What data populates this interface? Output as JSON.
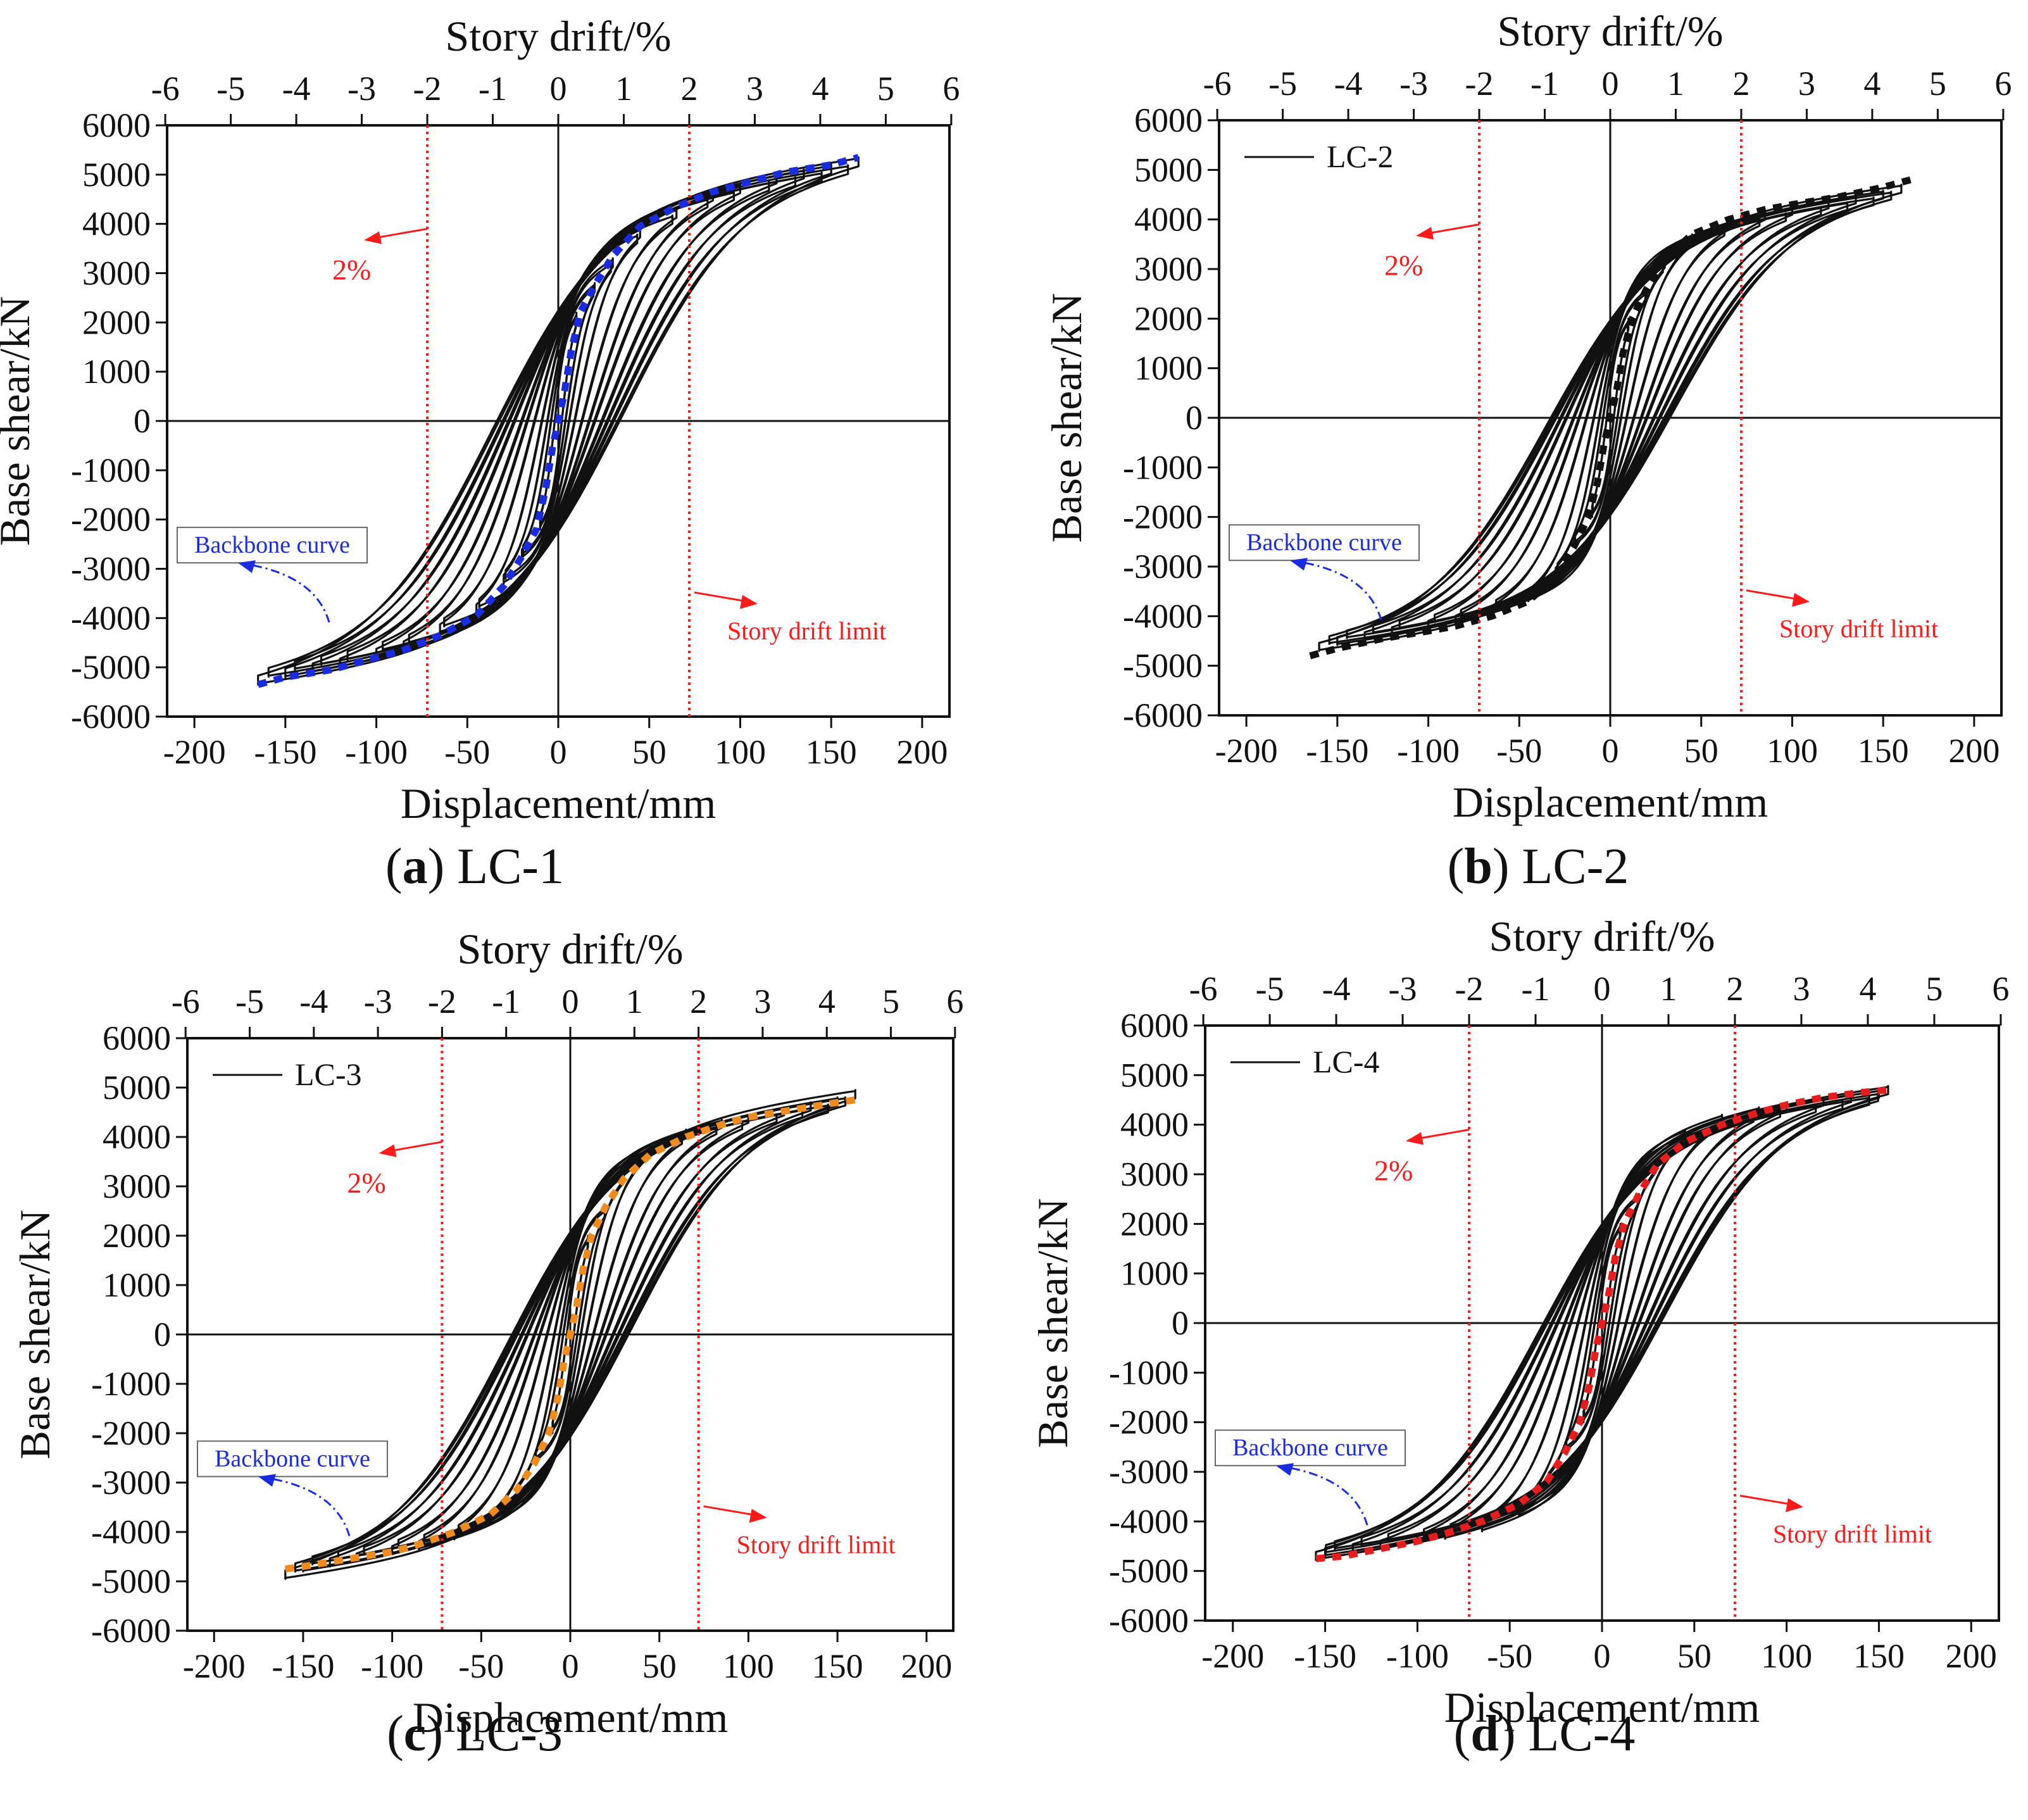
{
  "figure": {
    "panels": [
      {
        "id": "a",
        "letter": "a",
        "label": "LC-1",
        "show_legend": false,
        "legend_label": "",
        "backbone_color": "#1a2ce0",
        "backbone_label": "Backbone curve"
      },
      {
        "id": "b",
        "letter": "b",
        "label": "LC-2",
        "show_legend": true,
        "legend_label": "LC-2",
        "backbone_color": "#111111",
        "backbone_label": "Backbone curve"
      },
      {
        "id": "c",
        "letter": "c",
        "label": "LC-3",
        "show_legend": true,
        "legend_label": "LC-3",
        "backbone_color": "#f08c1e",
        "backbone_label": "Backbone curve"
      },
      {
        "id": "d",
        "letter": "d",
        "label": "LC-4",
        "show_legend": true,
        "legend_label": "LC-4",
        "backbone_color": "#e81c1c",
        "backbone_label": "Backbone curve"
      }
    ],
    "colors": {
      "curve": "#111111",
      "limit": "#ff1a1a",
      "annotation": "#ff1a1a",
      "callout": "#1a2ce0"
    }
  },
  "chart_data": [
    {
      "type": "line",
      "title": "(a) LC-1",
      "xlabel": "Displacement/mm",
      "ylabel": "Base shear/kN",
      "x2label": "Story drift/%",
      "xlim": [
        -215,
        215
      ],
      "ylim": [
        -6000,
        6000
      ],
      "xticks": [
        -200,
        -150,
        -100,
        -50,
        0,
        50,
        100,
        150,
        200
      ],
      "yticks": [
        -6000,
        -5000,
        -4000,
        -3000,
        -2000,
        -1000,
        0,
        1000,
        2000,
        3000,
        4000,
        5000,
        6000
      ],
      "x2ticks": [
        -6,
        -5,
        -4,
        -3,
        -2,
        -1,
        0,
        1,
        2,
        3,
        4,
        5,
        6
      ],
      "drift_limit_mm": 72,
      "drift_limit_label": "Story drift limit",
      "drift_pct_label": "2%",
      "backbone_label": "Backbone curve",
      "hysteresis": {
        "max_disp": [
          10,
          20,
          30,
          45,
          65,
          85,
          100,
          120,
          135,
          150,
          165
        ],
        "max_force": [
          2200,
          2800,
          3300,
          3900,
          4300,
          4650,
          4800,
          5000,
          5100,
          5200,
          5350
        ],
        "loops_per_amplitude": 2,
        "closing_x": 0.22,
        "hardening": 0.16,
        "curvature": 0.13
      },
      "backbone": {
        "x": [
          -165,
          -150,
          -125,
          -100,
          -85,
          -65,
          -45,
          -30,
          -20,
          -12,
          -7,
          -3,
          0,
          3,
          7,
          12,
          20,
          30,
          45,
          65,
          85,
          100,
          125,
          150,
          165
        ],
        "y": [
          -5350,
          -5200,
          -5050,
          -4800,
          -4650,
          -4350,
          -3950,
          -3350,
          -2750,
          -2200,
          -1400,
          -500,
          0,
          500,
          1400,
          2200,
          2750,
          3350,
          3950,
          4350,
          4650,
          4800,
          5050,
          5200,
          5350
        ]
      }
    },
    {
      "type": "line",
      "title": "(b) LC-2",
      "xlabel": "Displacement/mm",
      "ylabel": "Base shear/kN",
      "x2label": "Story drift/%",
      "xlim": [
        -215,
        215
      ],
      "ylim": [
        -6000,
        6000
      ],
      "xticks": [
        -200,
        -150,
        -100,
        -50,
        0,
        50,
        100,
        150,
        200
      ],
      "yticks": [
        -6000,
        -5000,
        -4000,
        -3000,
        -2000,
        -1000,
        0,
        1000,
        2000,
        3000,
        4000,
        5000,
        6000
      ],
      "x2ticks": [
        -6,
        -5,
        -4,
        -3,
        -2,
        -1,
        0,
        1,
        2,
        3,
        4,
        5,
        6
      ],
      "legend": [
        "LC-2"
      ],
      "drift_limit_mm": 72,
      "drift_limit_label": "Story drift limit",
      "drift_pct_label": "2%",
      "backbone_label": "Backbone curve",
      "hysteresis": {
        "max_disp": [
          10,
          20,
          30,
          45,
          65,
          85,
          100,
          120,
          135,
          150,
          160
        ],
        "max_force": [
          2000,
          2600,
          3200,
          3700,
          3950,
          4150,
          4250,
          4380,
          4480,
          4580,
          4700
        ],
        "loops_per_amplitude": 2,
        "closing_x": 0.22,
        "hardening": 0.16,
        "curvature": 0.13
      },
      "backbone": {
        "x": [
          -165,
          -150,
          -125,
          -100,
          -85,
          -65,
          -45,
          -30,
          -20,
          -12,
          -7,
          -3,
          0,
          3,
          7,
          12,
          20,
          30,
          45,
          65,
          85,
          100,
          125,
          150,
          165
        ],
        "y": [
          -4800,
          -4650,
          -4450,
          -4300,
          -4200,
          -4000,
          -3700,
          -3200,
          -2600,
          -2000,
          -1300,
          -450,
          0,
          450,
          1300,
          2000,
          2600,
          3200,
          3700,
          4000,
          4200,
          4300,
          4450,
          4650,
          4800
        ]
      }
    },
    {
      "type": "line",
      "title": "(c) LC-3",
      "xlabel": "Displacement/mm",
      "ylabel": "Base shear/kN",
      "x2label": "Story drift/%",
      "xlim": [
        -215,
        215
      ],
      "ylim": [
        -6000,
        6000
      ],
      "xticks": [
        -200,
        -150,
        -100,
        -50,
        0,
        50,
        100,
        150,
        200
      ],
      "yticks": [
        -6000,
        -5000,
        -4000,
        -3000,
        -2000,
        -1000,
        0,
        1000,
        2000,
        3000,
        4000,
        5000,
        6000
      ],
      "x2ticks": [
        -6,
        -5,
        -4,
        -3,
        -2,
        -1,
        0,
        1,
        2,
        3,
        4,
        5,
        6
      ],
      "legend": [
        "LC-3"
      ],
      "drift_limit_mm": 72,
      "drift_limit_label": "Story drift limit",
      "drift_pct_label": "2%",
      "backbone_label": "Backbone curve",
      "hysteresis": {
        "max_disp": [
          10,
          20,
          30,
          45,
          65,
          85,
          100,
          120,
          135,
          150,
          160
        ],
        "max_force": [
          2000,
          2600,
          3300,
          3850,
          4150,
          4350,
          4450,
          4600,
          4700,
          4800,
          4950
        ],
        "loops_per_amplitude": 2,
        "closing_x": 0.22,
        "hardening": 0.16,
        "curvature": 0.13
      },
      "backbone": {
        "x": [
          -160,
          -150,
          -125,
          -100,
          -85,
          -65,
          -45,
          -30,
          -20,
          -12,
          -7,
          -3,
          0,
          3,
          7,
          12,
          20,
          30,
          45,
          65,
          85,
          100,
          125,
          150,
          160
        ],
        "y": [
          -4750,
          -4700,
          -4550,
          -4400,
          -4250,
          -4000,
          -3650,
          -3150,
          -2600,
          -2000,
          -1300,
          -450,
          0,
          450,
          1300,
          2000,
          2600,
          3150,
          3650,
          4000,
          4250,
          4400,
          4550,
          4700,
          4750
        ]
      }
    },
    {
      "type": "line",
      "title": "(d) LC-4",
      "xlabel": "Displacement/mm",
      "ylabel": "Base shear/kN",
      "x2label": "Story drift/%",
      "xlim": [
        -215,
        215
      ],
      "ylim": [
        -6000,
        6000
      ],
      "xticks": [
        -200,
        -150,
        -100,
        -50,
        0,
        50,
        100,
        150,
        200
      ],
      "yticks": [
        -6000,
        -5000,
        -4000,
        -3000,
        -2000,
        -1000,
        0,
        1000,
        2000,
        3000,
        4000,
        5000,
        6000
      ],
      "x2ticks": [
        -6,
        -5,
        -4,
        -3,
        -2,
        -1,
        0,
        1,
        2,
        3,
        4,
        5,
        6
      ],
      "legend": [
        "LC-4"
      ],
      "drift_limit_mm": 72,
      "drift_limit_label": "Story drift limit",
      "drift_pct_label": "2%",
      "backbone_label": "Backbone curve",
      "hysteresis": {
        "max_disp": [
          10,
          20,
          30,
          45,
          65,
          85,
          100,
          120,
          135,
          150,
          155
        ],
        "max_force": [
          2000,
          2600,
          3300,
          3900,
          4200,
          4350,
          4450,
          4550,
          4620,
          4700,
          4780
        ],
        "loops_per_amplitude": 2,
        "closing_x": 0.22,
        "hardening": 0.16,
        "curvature": 0.13
      },
      "backbone": {
        "x": [
          -155,
          -140,
          -120,
          -100,
          -85,
          -65,
          -45,
          -30,
          -20,
          -12,
          -7,
          -3,
          0,
          3,
          7,
          12,
          20,
          30,
          45,
          65,
          85,
          100,
          120,
          140,
          155
        ],
        "y": [
          -4750,
          -4700,
          -4550,
          -4400,
          -4250,
          -4000,
          -3650,
          -3200,
          -2600,
          -2000,
          -1300,
          -450,
          0,
          450,
          1300,
          2000,
          2600,
          3200,
          3650,
          4000,
          4250,
          4400,
          4550,
          4650,
          4700
        ]
      }
    }
  ]
}
